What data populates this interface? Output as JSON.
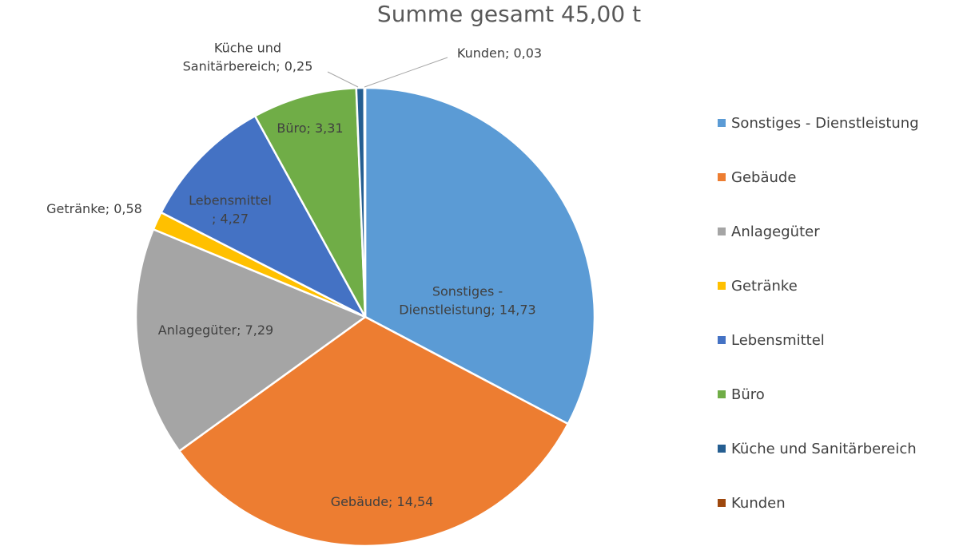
{
  "chart_data": {
    "type": "pie",
    "title": "Summe gesamt 45,00 t",
    "total": 45.0,
    "slices": [
      {
        "name": "Sonstiges - Dienstleistung",
        "value": 14.73,
        "label_lines": [
          "Sonstiges -",
          "Dienstleistung; 14,73"
        ],
        "color": "#5B9BD5",
        "label_placement": "inside"
      },
      {
        "name": "Gebäude",
        "value": 14.54,
        "label_lines": [
          "Gebäude; 14,54"
        ],
        "color": "#ED7D31",
        "label_placement": "inside"
      },
      {
        "name": "Anlagegüter",
        "value": 7.29,
        "label_lines": [
          "Anlagegüter; 7,29"
        ],
        "color": "#A5A5A5",
        "label_placement": "inside"
      },
      {
        "name": "Getränke",
        "value": 0.58,
        "label_lines": [
          "Getränke; 0,58"
        ],
        "color": "#FFC000",
        "label_placement": "outside"
      },
      {
        "name": "Lebensmittel",
        "value": 4.27,
        "label_lines": [
          "Lebensmittel",
          "; 4,27"
        ],
        "color": "#4472C4",
        "label_placement": "inside"
      },
      {
        "name": "Büro",
        "value": 3.31,
        "label_lines": [
          "Büro; 3,31"
        ],
        "color": "#70AD47",
        "label_placement": "inside"
      },
      {
        "name": "Küche und Sanitärbereich",
        "value": 0.25,
        "label_lines": [
          "Küche und",
          "Sanitärbereich; 0,25"
        ],
        "color": "#255E91",
        "label_placement": "outside-leader"
      },
      {
        "name": "Kunden",
        "value": 0.03,
        "label_lines": [
          "Kunden; 0,03"
        ],
        "color": "#9E480E",
        "label_placement": "outside-leader"
      }
    ],
    "legend_position": "right"
  }
}
